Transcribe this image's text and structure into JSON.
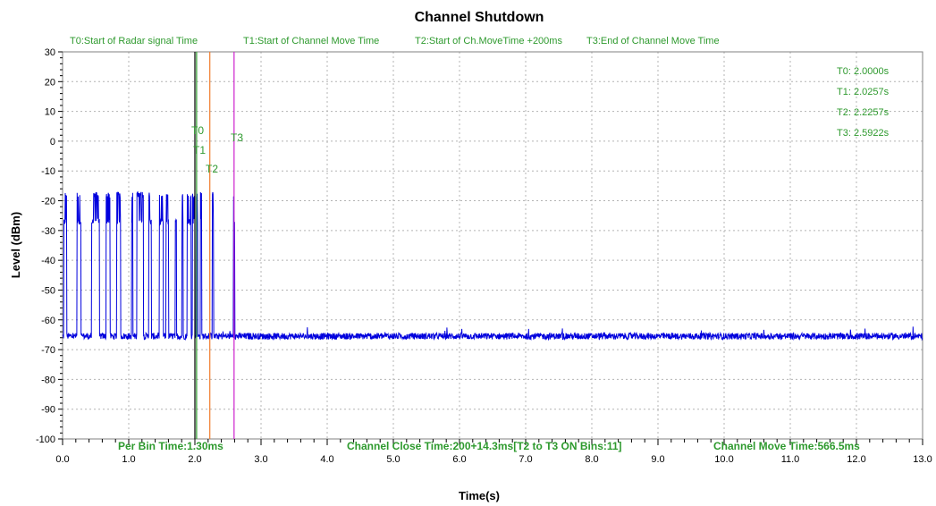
{
  "chart_data": {
    "type": "line",
    "title": "Channel Shutdown",
    "xlabel": "Time(s)",
    "ylabel": "Level (dBm)",
    "xlim": [
      0,
      13
    ],
    "ylim": [
      -100,
      30
    ],
    "grid": true,
    "x_ticks": [
      "0.0",
      "1.0",
      "2.0",
      "3.0",
      "4.0",
      "5.0",
      "6.0",
      "7.0",
      "8.0",
      "9.0",
      "10.0",
      "11.0",
      "12.0",
      "13.0"
    ],
    "y_ticks": [
      "30",
      "20",
      "10",
      "0",
      "-10",
      "-20",
      "-30",
      "-40",
      "-50",
      "-60",
      "-70",
      "-80",
      "-90",
      "-100"
    ],
    "legend": [
      {
        "label": "T0:Start of Radar signal Time"
      },
      {
        "label": "T1:Start of Channel Move Time"
      },
      {
        "label": "T2:Start of Ch.MoveTime +200ms"
      },
      {
        "label": "T3:End of Channel Move Time"
      }
    ],
    "markers": [
      {
        "name": "T0",
        "x": 2.0,
        "color": "#000000",
        "readout": "T0: 2.0000s"
      },
      {
        "name": "T1",
        "x": 2.0257,
        "color": "#2e9a2e",
        "readout": "T1: 2.0257s"
      },
      {
        "name": "T2",
        "x": 2.2257,
        "color": "#f07a2a",
        "readout": "T2: 2.2257s"
      },
      {
        "name": "T3",
        "x": 2.5922,
        "color": "#cc22cc",
        "readout": "T3: 2.5922s"
      }
    ],
    "annotations": {
      "per_bin": "Per Bin Time:1.30ms",
      "close_time": "Channel Close Time:200+14.3ms[T2 to T3 ON Bins:11]",
      "move_time": "Channel Move Time:566.5ms"
    },
    "series": [
      {
        "color": "#0000dd",
        "noise_floor": -65.5,
        "pulse_groups": [
          [
            0.02,
            0.06
          ],
          [
            0.22,
            0.28
          ],
          [
            0.44,
            0.56
          ],
          [
            0.66,
            0.72
          ],
          [
            0.82,
            0.88
          ],
          [
            1.04,
            1.06
          ],
          [
            1.12,
            1.22
          ],
          [
            1.3,
            1.34
          ],
          [
            1.46,
            1.52
          ],
          [
            1.56,
            1.6
          ],
          [
            1.7,
            1.72
          ],
          [
            1.8,
            1.82
          ],
          [
            1.88,
            1.94
          ],
          [
            1.96,
            2.0
          ],
          [
            2.02,
            2.04
          ],
          [
            2.08,
            2.1
          ],
          [
            2.26,
            2.28
          ],
          [
            2.58,
            2.6
          ]
        ]
      }
    ]
  }
}
